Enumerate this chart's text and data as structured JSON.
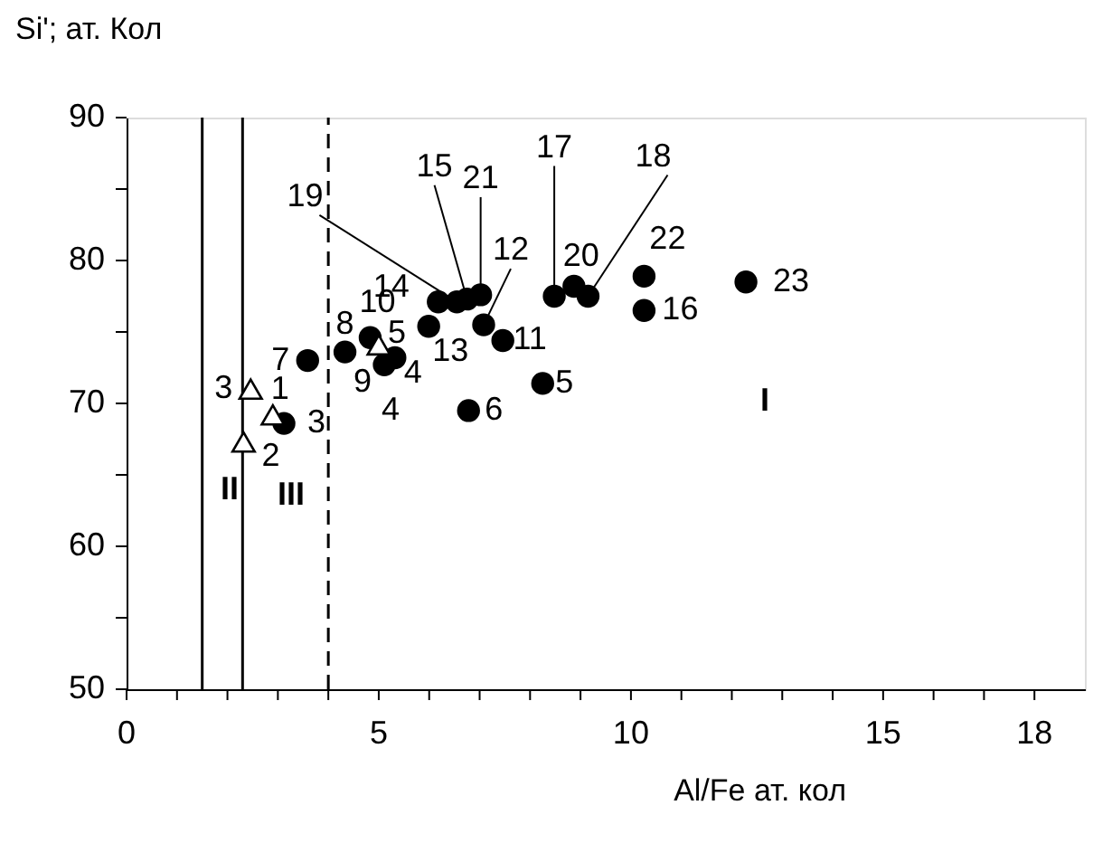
{
  "chart_data": {
    "type": "scatter",
    "xlabel": "Al/Fe ат. кол",
    "ylabel": "Si'; ат. Кол",
    "xlim": [
      0,
      19
    ],
    "ylim": [
      50,
      90
    ],
    "xticks": [
      0,
      {
        "value": 1,
        "label": null
      },
      {
        "value": 2,
        "label": null
      },
      {
        "value": 3,
        "label": null
      },
      {
        "value": 4,
        "label": null
      },
      5,
      {
        "value": 6,
        "label": null
      },
      {
        "value": 7,
        "label": null
      },
      {
        "value": 8,
        "label": null
      },
      {
        "value": 9,
        "label": null
      },
      10,
      {
        "value": 11,
        "label": null
      },
      {
        "value": 12,
        "label": null
      },
      {
        "value": 13,
        "label": null
      },
      {
        "value": 14,
        "label": null
      },
      15,
      {
        "value": 16,
        "label": null
      },
      {
        "value": 17,
        "label": null
      },
      18
    ],
    "yticks": [
      50,
      {
        "value": 55,
        "label": null
      },
      60,
      {
        "value": 65,
        "label": null
      },
      70,
      {
        "value": 75,
        "label": null
      },
      80,
      {
        "value": 85,
        "label": null
      },
      90
    ],
    "grid": false,
    "series": [
      {
        "color": "#000000",
        "marker": "circle",
        "x": [
          3.12,
          3.59,
          4.33,
          4.83,
          5.11,
          5.32,
          5.99,
          6.18,
          6.55,
          6.75,
          7.02,
          7.08,
          7.46,
          6.78,
          8.25,
          8.48,
          8.87,
          9.15,
          10.26,
          10.26,
          12.28
        ],
        "values": [
          68.6,
          73.0,
          73.6,
          74.6,
          72.7,
          73.2,
          75.4,
          77.1,
          77.1,
          77.3,
          77.6,
          75.5,
          74.4,
          69.5,
          71.4,
          77.5,
          78.2,
          77.5,
          78.9,
          76.5,
          78.5
        ]
      },
      {
        "color": "#000000",
        "marker": "triangle",
        "x": [
          2.46,
          2.9,
          2.32,
          5.0
        ],
        "values": [
          71.0,
          69.2,
          67.3,
          74.1
        ]
      }
    ],
    "ref_lines": [
      {
        "axis": "x",
        "value": 1.5,
        "color": "#000000",
        "line_style": "solid"
      },
      {
        "axis": "x",
        "value": 2.3,
        "color": "#000000",
        "line_style": "solid"
      },
      {
        "axis": "x",
        "value": 4.0,
        "color": "#000000",
        "line_style": "dashed"
      }
    ],
    "annotations": [
      {
        "text": "3",
        "x": 3.12,
        "y": 68.6
      },
      {
        "text": "7",
        "x": 3.59,
        "y": 73.0
      },
      {
        "text": "8",
        "x": 4.33,
        "y": 73.6
      },
      {
        "text": "10",
        "x": 4.83,
        "y": 74.6
      },
      {
        "text": "9",
        "x": 5.11,
        "y": 72.7
      },
      {
        "text": "4",
        "x": 5.32,
        "y": 73.2
      },
      {
        "text": "13",
        "x": 5.99,
        "y": 75.4
      },
      {
        "text": "14",
        "x": 6.18,
        "y": 77.1
      },
      {
        "text": "19",
        "x": 6.55,
        "y": 77.1
      },
      {
        "text": "15",
        "x": 6.75,
        "y": 77.3
      },
      {
        "text": "21",
        "x": 7.02,
        "y": 77.6
      },
      {
        "text": "12",
        "x": 7.08,
        "y": 75.5
      },
      {
        "text": "11",
        "x": 7.46,
        "y": 74.4
      },
      {
        "text": "6",
        "x": 6.78,
        "y": 69.5
      },
      {
        "text": "5",
        "x": 8.25,
        "y": 71.4
      },
      {
        "text": "17",
        "x": 8.48,
        "y": 77.5
      },
      {
        "text": "20",
        "x": 8.87,
        "y": 78.2
      },
      {
        "text": "18",
        "x": 9.15,
        "y": 77.5
      },
      {
        "text": "22",
        "x": 10.26,
        "y": 78.9
      },
      {
        "text": "16",
        "x": 10.26,
        "y": 76.5
      },
      {
        "text": "23",
        "x": 12.28,
        "y": 78.5
      },
      {
        "text": "3",
        "x": 2.46,
        "y": 71.0
      },
      {
        "text": "1",
        "x": 2.9,
        "y": 69.2
      },
      {
        "text": "2",
        "x": 2.32,
        "y": 67.3
      },
      {
        "text": "5",
        "x": 5.0,
        "y": 74.1
      },
      "4",
      "II",
      "III",
      "I"
    ]
  }
}
